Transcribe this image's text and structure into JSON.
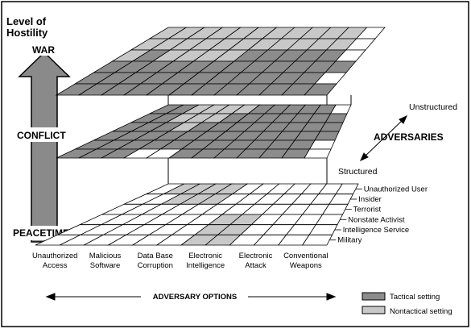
{
  "title_line1": "Level of",
  "title_line2": "Hostility",
  "levels": {
    "war": "WAR",
    "conflict": "CONFLICT",
    "peacetime": "PEACETIME"
  },
  "adversaries_label": "ADVERSARIES",
  "unstructured_label": "Unstructured",
  "structured_label": "Structured",
  "adversary_options_label": "ADVERSARY OPTIONS",
  "adversary_types": [
    "Unauthorized User",
    "Insider",
    "Terrorist",
    "Nonstate Activist",
    "Intelligence Service",
    "Military"
  ],
  "options": [
    [
      "Unauthorized",
      "Access"
    ],
    [
      "Malicious",
      "Software"
    ],
    [
      "Data Base",
      "Corruption"
    ],
    [
      "Electronic",
      "Intelligence"
    ],
    [
      "Electronic",
      "Attack"
    ],
    [
      "Conventional",
      "Weapons"
    ]
  ],
  "legend": [
    {
      "label": "Tactical setting",
      "color": "#8c8c8c"
    },
    {
      "label": "Nontactical setting",
      "color": "#c8c8c8"
    }
  ],
  "colors": {
    "tactical": "#8c8c8c",
    "nontactical": "#c8c8c8",
    "empty": "#ffffff",
    "arrow": "#8a8a8a"
  },
  "planes": [
    {
      "name": "war",
      "grid": [
        "NNNNNNNNNNNE",
        "NNNNNNNNNNNE",
        "NTNNNNTTTTTE",
        "TTTTTTTTTTTT",
        "TTTTTTTTTTTE",
        "TTTTTTTTTTTT"
      ]
    },
    {
      "name": "conflict",
      "grid": [
        "TTNNNNTTTTTE",
        "TTNNNTTTTTTT",
        "TTTNTTTTTTTT",
        "TTTTTTTTTTTT",
        "TTTTTTTTTTTE",
        "TTTEETTTTTTE"
      ]
    },
    {
      "name": "peacetime",
      "grid": [
        "ENNNNEEEEEEE",
        "EENNNEEEEEEE",
        "EEEEEEEEEEEE",
        "EEEEEENNEEEE",
        "EEEEEENNEEEE",
        "EEEEEENNEEEE"
      ]
    }
  ]
}
